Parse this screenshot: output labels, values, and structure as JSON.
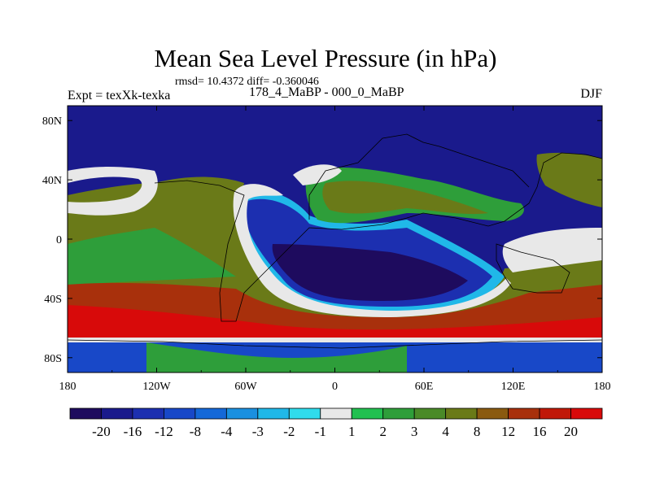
{
  "title": "Mean Sea Level Pressure (in hPa)",
  "stats": "rmsd= 10.4372 diff= -0.360046",
  "left_label": "Expt = texXk-texka",
  "center_label": "178_4_MaBP - 000_0_MaBP",
  "right_label": "DJF",
  "axes": {
    "x_ticks": [
      "180",
      "120W",
      "60W",
      "0",
      "60E",
      "120E",
      "180"
    ],
    "y_ticks": [
      "80N",
      "40N",
      "0",
      "40S",
      "80S"
    ]
  },
  "colorbar": {
    "levels": [
      "-20",
      "-16",
      "-12",
      "-8",
      "-4",
      "-3",
      "-2",
      "-1",
      "1",
      "2",
      "3",
      "4",
      "8",
      "12",
      "16",
      "20"
    ],
    "colors": [
      "#1e0b5e",
      "#1a1a8c",
      "#1c2fb0",
      "#1848c8",
      "#1468d8",
      "#1a90e0",
      "#20b8e8",
      "#30dcec",
      "#e8e8e8",
      "#22c050",
      "#2e9e3a",
      "#4a8a28",
      "#6a7a18",
      "#8a5a10",
      "#a8300c",
      "#c01808",
      "#d80a0a"
    ]
  },
  "regions": {
    "north_low": "#1a1a8c",
    "ocean_low_core": "#1e0b5e",
    "ocean_low_mid": "#1c2fb0",
    "ocean_low_edge": "#20b8e8",
    "neutral": "#e8e8e8",
    "land_green": "#2e9e3a",
    "land_olive": "#6a7a18",
    "south_high": "#d80a0a",
    "south_high_mid": "#c01808",
    "south_high_edge": "#a8300c",
    "polar_green": "#22c050",
    "polar_blue": "#1848c8"
  }
}
